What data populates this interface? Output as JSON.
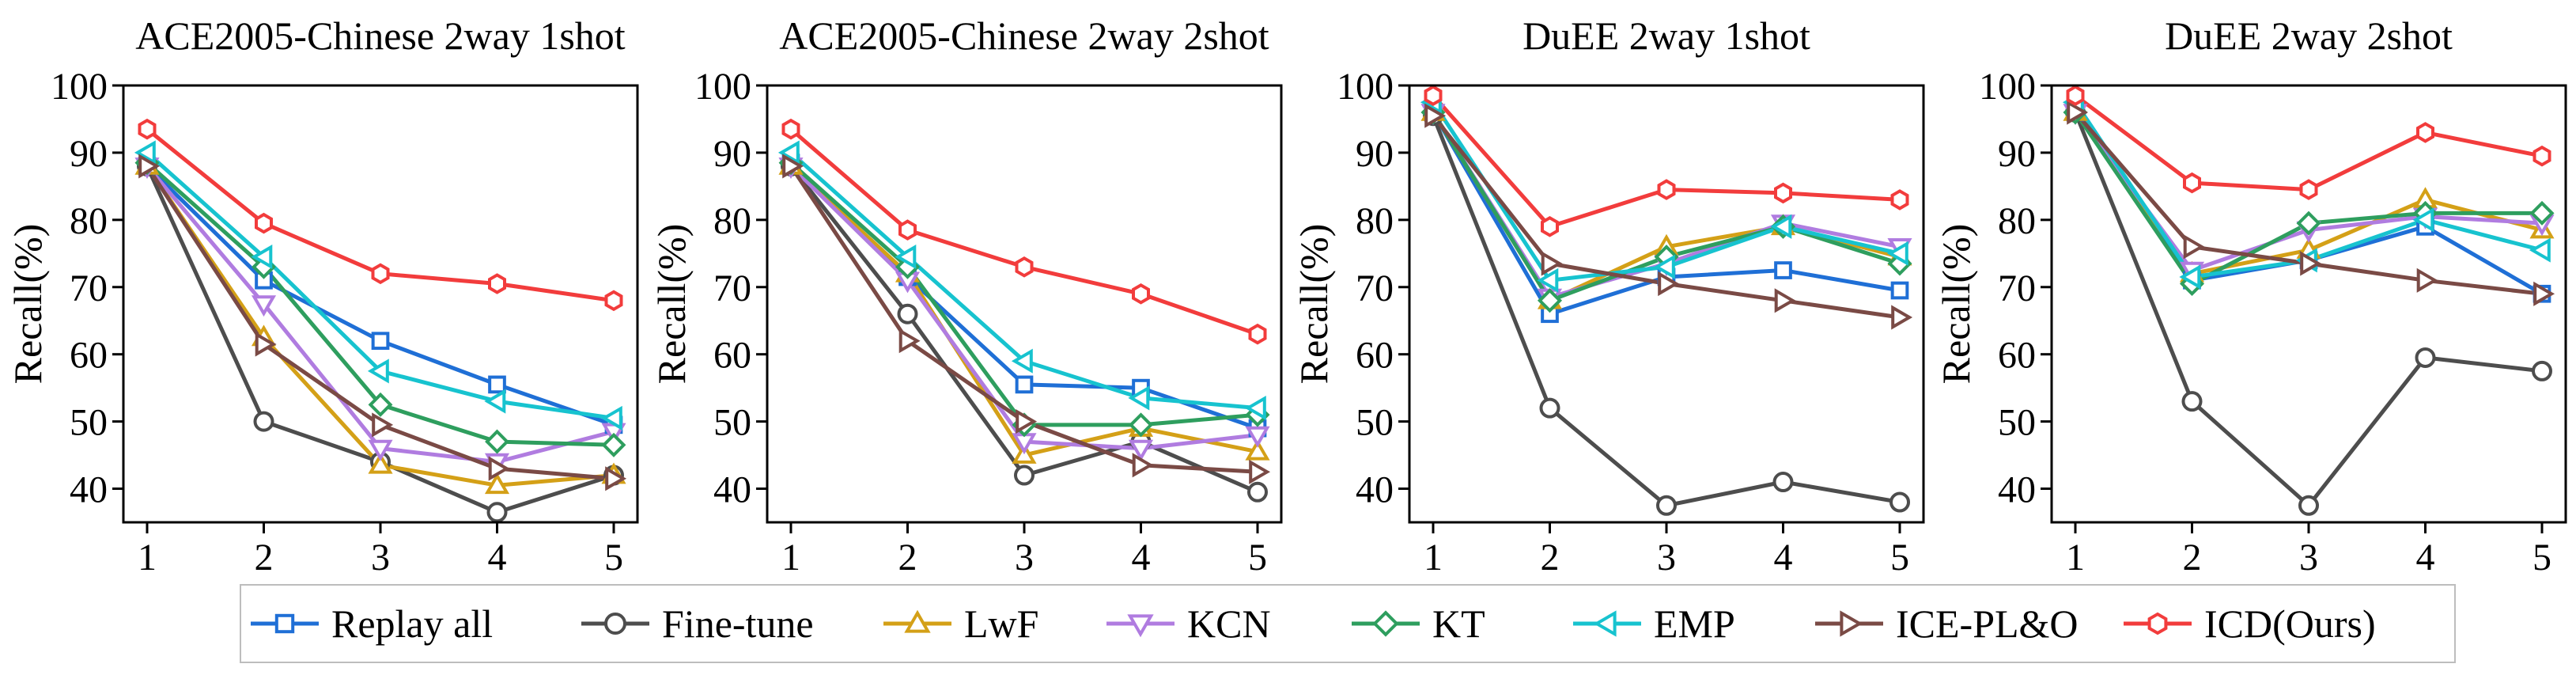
{
  "legend": [
    {
      "name": "Replay all",
      "color": "#1f6fd6",
      "marker": "square"
    },
    {
      "name": "Fine-tune",
      "color": "#4d4d4d",
      "marker": "circle"
    },
    {
      "name": "LwF",
      "color": "#d4a017",
      "marker": "triangle-up"
    },
    {
      "name": "KCN",
      "color": "#b07ce0",
      "marker": "triangle-down"
    },
    {
      "name": "KT",
      "color": "#2e9e5e",
      "marker": "diamond"
    },
    {
      "name": "EMP",
      "color": "#17c3cf",
      "marker": "triangle-left"
    },
    {
      "name": "ICE-PL&O",
      "color": "#7a4a45",
      "marker": "triangle-right"
    },
    {
      "name": "ICD(Ours)",
      "color": "#f23c3c",
      "marker": "hexagon"
    }
  ],
  "chart_data": [
    {
      "type": "line",
      "title": "ACE2005-Chinese 2way 1shot",
      "ylabel": "Recall(%)",
      "x": [
        1,
        2,
        3,
        4,
        5
      ],
      "ylim": [
        35,
        100
      ],
      "yticks": [
        40,
        50,
        60,
        70,
        80,
        90,
        100
      ],
      "series": [
        {
          "name": "Replay all",
          "values": [
            88,
            71,
            62,
            55.5,
            49.5
          ]
        },
        {
          "name": "Fine-tune",
          "values": [
            88,
            50,
            44,
            36.5,
            42
          ]
        },
        {
          "name": "LwF",
          "values": [
            88,
            62.5,
            43.5,
            40.5,
            42
          ]
        },
        {
          "name": "KCN",
          "values": [
            88,
            67.5,
            46,
            44,
            48.5
          ]
        },
        {
          "name": "KT",
          "values": [
            88.5,
            73,
            52.5,
            47,
            46.5
          ]
        },
        {
          "name": "EMP",
          "values": [
            90,
            74.5,
            57.5,
            53,
            50.5
          ]
        },
        {
          "name": "ICE-PL&O",
          "values": [
            88,
            61.5,
            49.5,
            43,
            41.5
          ]
        },
        {
          "name": "ICD(Ours)",
          "values": [
            93.5,
            79.5,
            72,
            70.5,
            68
          ]
        }
      ]
    },
    {
      "type": "line",
      "title": "ACE2005-Chinese 2way 2shot",
      "ylabel": "Recall(%)",
      "x": [
        1,
        2,
        3,
        4,
        5
      ],
      "ylim": [
        35,
        100
      ],
      "yticks": [
        40,
        50,
        60,
        70,
        80,
        90,
        100
      ],
      "series": [
        {
          "name": "Replay all",
          "values": [
            88.5,
            71.5,
            55.5,
            55,
            49
          ]
        },
        {
          "name": "Fine-tune",
          "values": [
            88,
            66,
            42,
            47,
            39.5
          ]
        },
        {
          "name": "LwF",
          "values": [
            88,
            72,
            45,
            49,
            45.5
          ]
        },
        {
          "name": "KCN",
          "values": [
            88,
            71,
            47,
            46,
            48
          ]
        },
        {
          "name": "KT",
          "values": [
            88.5,
            73,
            49.5,
            49.5,
            51
          ]
        },
        {
          "name": "EMP",
          "values": [
            90,
            74.5,
            59,
            53.5,
            52
          ]
        },
        {
          "name": "ICE-PL&O",
          "values": [
            88,
            62,
            50,
            43.5,
            42.5
          ]
        },
        {
          "name": "ICD(Ours)",
          "values": [
            93.5,
            78.5,
            73,
            69,
            63
          ]
        }
      ]
    },
    {
      "type": "line",
      "title": "DuEE 2way 1shot",
      "ylabel": "Recall(%)",
      "x": [
        1,
        2,
        3,
        4,
        5
      ],
      "ylim": [
        35,
        100
      ],
      "yticks": [
        40,
        50,
        60,
        70,
        80,
        90,
        100
      ],
      "series": [
        {
          "name": "Replay all",
          "values": [
            96,
            66,
            71.5,
            72.5,
            69.5
          ]
        },
        {
          "name": "Fine-tune",
          "values": [
            95.5,
            52,
            37.5,
            41,
            38
          ]
        },
        {
          "name": "LwF",
          "values": [
            96,
            68,
            76,
            79,
            74.5
          ]
        },
        {
          "name": "KCN",
          "values": [
            96,
            68.5,
            73.5,
            79.5,
            76
          ]
        },
        {
          "name": "KT",
          "values": [
            96,
            68,
            74.5,
            79,
            73.5
          ]
        },
        {
          "name": "EMP",
          "values": [
            97.5,
            71,
            73,
            79,
            75
          ]
        },
        {
          "name": "ICE-PL&O",
          "values": [
            95.5,
            73.5,
            70.5,
            68,
            65.5
          ]
        },
        {
          "name": "ICD(Ours)",
          "values": [
            98.5,
            79,
            84.5,
            84,
            83
          ]
        }
      ]
    },
    {
      "type": "line",
      "title": "DuEE 2way 2shot",
      "ylabel": "Recall(%)",
      "x": [
        1,
        2,
        3,
        4,
        5
      ],
      "ylim": [
        35,
        100
      ],
      "yticks": [
        40,
        50,
        60,
        70,
        80,
        90,
        100
      ],
      "series": [
        {
          "name": "Replay all",
          "values": [
            96,
            71,
            74,
            79,
            69
          ]
        },
        {
          "name": "Fine-tune",
          "values": [
            96,
            53,
            37.5,
            59.5,
            57.5
          ]
        },
        {
          "name": "LwF",
          "values": [
            96,
            72,
            75.5,
            83,
            78.5
          ]
        },
        {
          "name": "KCN",
          "values": [
            96,
            72.5,
            78.5,
            80.5,
            79.5
          ]
        },
        {
          "name": "KT",
          "values": [
            96,
            70.5,
            79.5,
            81,
            81
          ]
        },
        {
          "name": "EMP",
          "values": [
            97.5,
            71.5,
            74,
            80,
            75.5
          ]
        },
        {
          "name": "ICE-PL&O",
          "values": [
            96,
            76,
            73.5,
            71,
            69
          ]
        },
        {
          "name": "ICD(Ours)",
          "values": [
            98.5,
            85.5,
            84.5,
            93,
            89.5
          ]
        }
      ]
    }
  ]
}
